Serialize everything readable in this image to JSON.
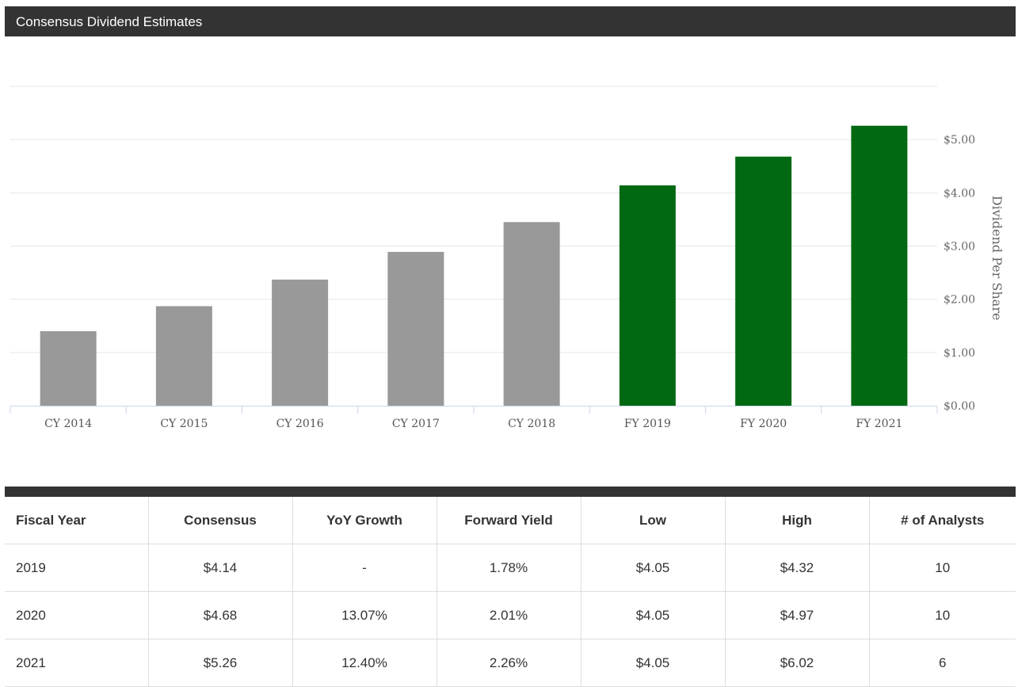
{
  "header": {
    "title": "Consensus Dividend Estimates"
  },
  "colors": {
    "historical": "#999999",
    "estimate": "#006912",
    "header_bg": "#333333",
    "grid": "#e6e6e6"
  },
  "chart_data": {
    "type": "bar",
    "categories": [
      "CY 2014",
      "CY 2015",
      "CY 2016",
      "CY 2017",
      "CY 2018",
      "FY 2019",
      "FY 2020",
      "FY 2021"
    ],
    "values": [
      1.4,
      1.87,
      2.37,
      2.89,
      3.45,
      4.14,
      4.68,
      5.26
    ],
    "bar_kind": [
      "historical",
      "historical",
      "historical",
      "historical",
      "historical",
      "estimate",
      "estimate",
      "estimate"
    ],
    "title": "",
    "xlabel": "",
    "ylabel": "Dividend Per Share",
    "ylim": [
      0,
      6
    ],
    "y_ticks": [
      {
        "value": 0,
        "label": "$0.00"
      },
      {
        "value": 1,
        "label": "$1.00"
      },
      {
        "value": 2,
        "label": "$2.00"
      },
      {
        "value": 3,
        "label": "$3.00"
      },
      {
        "value": 4,
        "label": "$4.00"
      },
      {
        "value": 5,
        "label": "$5.00"
      },
      {
        "value": 6,
        "label": ""
      }
    ],
    "y_axis_side": "right",
    "grid": true,
    "legend": "none"
  },
  "table": {
    "headers": [
      "Fiscal Year",
      "Consensus",
      "YoY Growth",
      "Forward Yield",
      "Low",
      "High",
      "# of Analysts"
    ],
    "rows": [
      [
        "2019",
        "$4.14",
        "-",
        "1.78%",
        "$4.05",
        "$4.32",
        "10"
      ],
      [
        "2020",
        "$4.68",
        "13.07%",
        "2.01%",
        "$4.05",
        "$4.97",
        "10"
      ],
      [
        "2021",
        "$5.26",
        "12.40%",
        "2.26%",
        "$4.05",
        "$6.02",
        "6"
      ]
    ]
  }
}
